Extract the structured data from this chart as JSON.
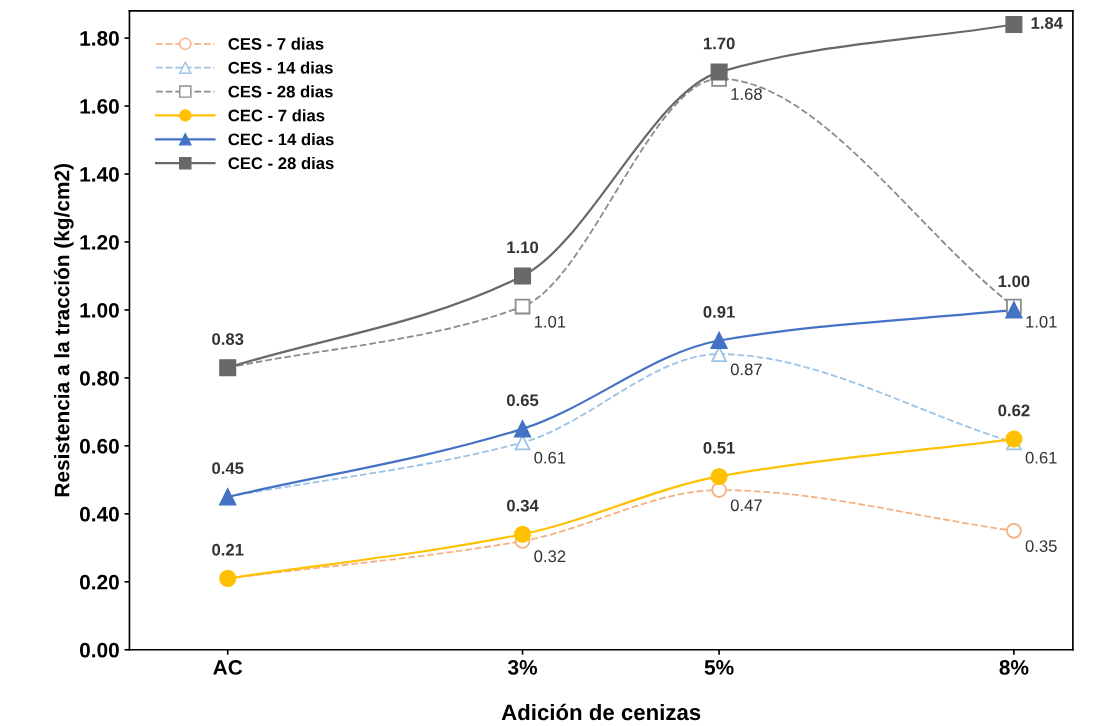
{
  "chart_data": {
    "type": "line",
    "xlabel": "Adición de cenizas",
    "ylabel": "Resistencia a la tracción (kg/cm2)",
    "x": [
      0,
      3,
      5,
      8
    ],
    "xlim": [
      -1.0,
      8.6
    ],
    "xticks": [
      {
        "value": 0,
        "label": "AC"
      },
      {
        "value": 3,
        "label": "3%"
      },
      {
        "value": 5,
        "label": "5%"
      },
      {
        "value": 8,
        "label": "8%"
      }
    ],
    "ylim": [
      0,
      1.88
    ],
    "yticks": [
      {
        "value": 0,
        "label": "0.00"
      },
      {
        "value": 0.2,
        "label": "0.20"
      },
      {
        "value": 0.4,
        "label": "0.40"
      },
      {
        "value": 0.6,
        "label": "0.60"
      },
      {
        "value": 0.8,
        "label": "0.80"
      },
      {
        "value": 1.0,
        "label": "1.00"
      },
      {
        "value": 1.2,
        "label": "1.20"
      },
      {
        "value": 1.4,
        "label": "1.40"
      },
      {
        "value": 1.6,
        "label": "1.60"
      },
      {
        "value": 1.8,
        "label": "1.80"
      }
    ],
    "grid": false,
    "legend": "top left",
    "series": [
      {
        "name": "CES - 7 dias",
        "color": "#f4b183",
        "marker": "circle",
        "line_style": "dashed",
        "values": [
          0.21,
          0.32,
          0.47,
          0.35
        ],
        "value_labels": [
          null,
          "0.32",
          "0.47",
          "0.35"
        ]
      },
      {
        "name": "CES - 14 dias",
        "color": "#9dc3e6",
        "marker": "triangle",
        "line_style": "dashed",
        "values": [
          0.45,
          0.61,
          0.87,
          0.61
        ],
        "value_labels": [
          null,
          "0.61",
          "0.87",
          "0.61"
        ]
      },
      {
        "name": "CES - 28 dias",
        "color": "#8c8c8c",
        "marker": "square",
        "line_style": "dashed",
        "values": [
          0.83,
          1.01,
          1.68,
          1.01
        ],
        "value_labels": [
          null,
          "1.01",
          "1.68",
          "1.01"
        ]
      },
      {
        "name": "CEC - 7 dias",
        "color": "#ffc000",
        "marker": "circle",
        "line_style": "solid",
        "values": [
          0.21,
          0.34,
          0.51,
          0.62
        ],
        "value_labels": [
          "0.21",
          "0.34",
          "0.51",
          "0.62"
        ]
      },
      {
        "name": "CEC - 14 dias",
        "color": "#4472c4",
        "marker": "triangle",
        "line_style": "solid",
        "values": [
          0.45,
          0.65,
          0.91,
          1.0
        ],
        "value_labels": [
          "0.45",
          "0.65",
          "0.91",
          "1.00"
        ]
      },
      {
        "name": "CEC - 28 dias",
        "color": "#696969",
        "marker": "square",
        "line_style": "solid",
        "values": [
          0.83,
          1.1,
          1.7,
          1.84
        ],
        "value_labels": [
          "0.83",
          "1.10",
          "1.70",
          "1.84"
        ]
      }
    ]
  }
}
